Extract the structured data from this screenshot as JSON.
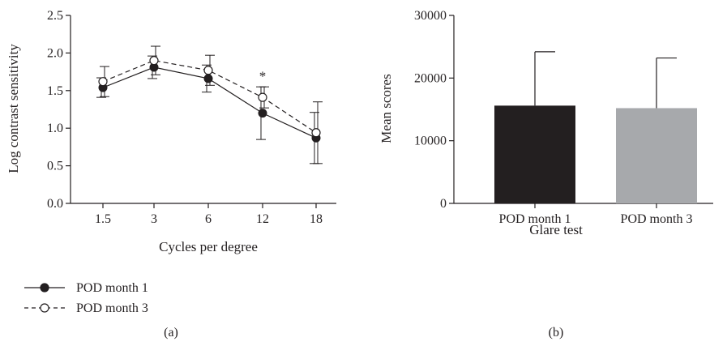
{
  "chart_data": [
    {
      "type": "line",
      "panel_label": "(a)",
      "xlabel": "Cycles per degree",
      "ylabel": "Log contrast sensitivity",
      "categories": [
        "1.5",
        "3",
        "6",
        "12",
        "18"
      ],
      "ylim": [
        0,
        2.5
      ],
      "yticks": [
        "0.0",
        "0.5",
        "1.0",
        "1.5",
        "2.0",
        "2.5"
      ],
      "series": [
        {
          "name": "POD month 1",
          "values": [
            1.54,
            1.81,
            1.66,
            1.2,
            0.87
          ],
          "error": [
            0.13,
            0.15,
            0.18,
            0.35,
            0.34
          ],
          "marker": "filled-circle",
          "line": "solid"
        },
        {
          "name": "POD month 3",
          "values": [
            1.62,
            1.9,
            1.77,
            1.41,
            0.94
          ],
          "error": [
            0.2,
            0.19,
            0.2,
            0.14,
            0.41
          ],
          "marker": "open-circle",
          "line": "dashed"
        }
      ],
      "annotations": [
        {
          "category": "12",
          "text": "*"
        }
      ],
      "legend_placement": "bottom-left",
      "grid": false
    },
    {
      "type": "bar",
      "panel_label": "(b)",
      "xlabel": "Glare test",
      "ylabel": "Mean scores",
      "categories": [
        "POD month 1",
        "POD month 3"
      ],
      "values": [
        15600,
        15200
      ],
      "error": [
        8600,
        8000
      ],
      "colors": [
        "#231f20",
        "#a7a9ac"
      ],
      "ylim": [
        0,
        30000
      ],
      "yticks": [
        "0",
        "10000",
        "20000",
        "30000"
      ],
      "grid": false
    }
  ]
}
